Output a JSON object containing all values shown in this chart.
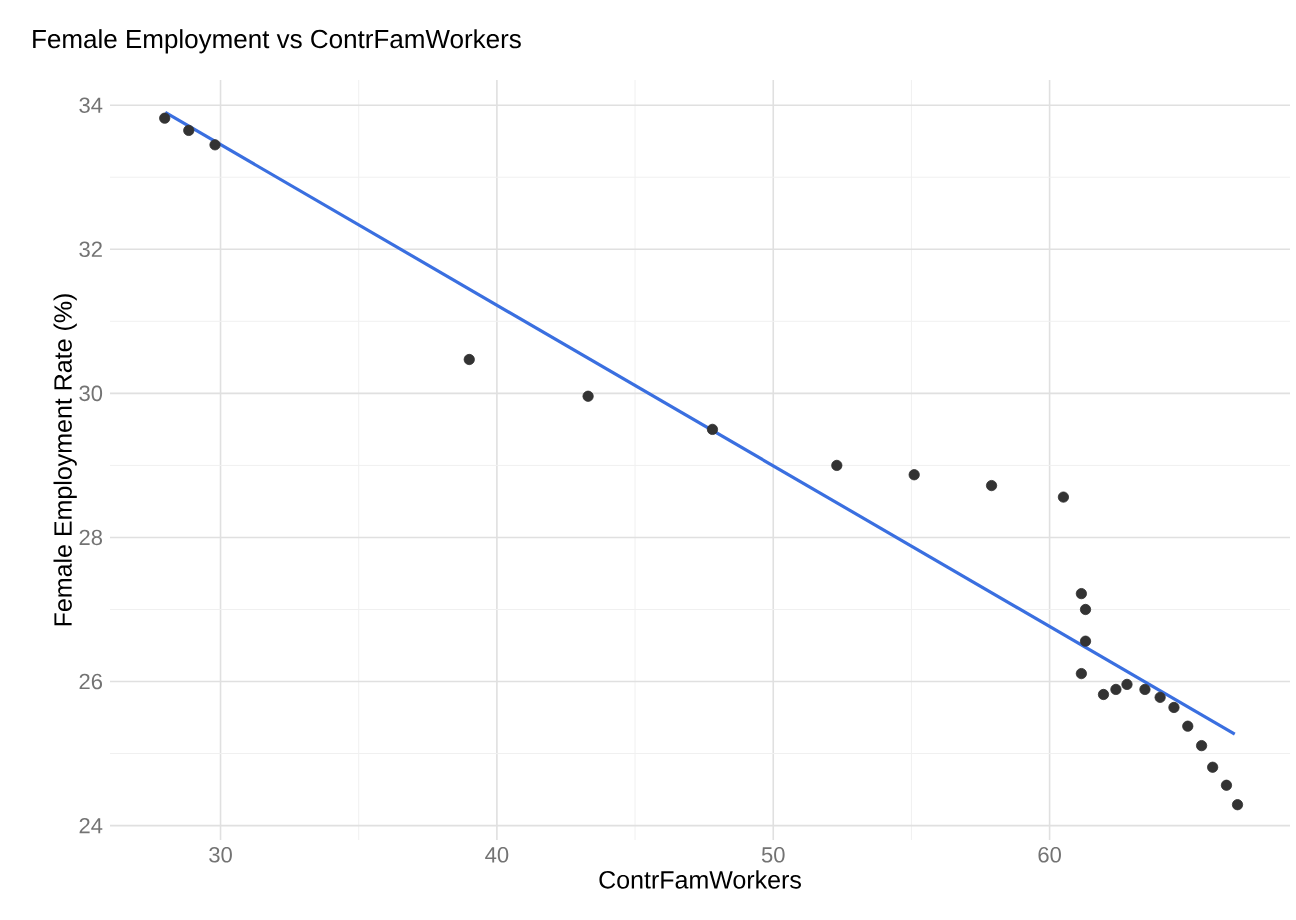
{
  "chart_data": {
    "type": "scatter",
    "title": "Female Employment vs ContrFamWorkers",
    "xlabel": "ContrFamWorkers",
    "ylabel": "Female Employment Rate (%)",
    "xlim": [
      26,
      68.7
    ],
    "ylim": [
      23.8,
      34.35
    ],
    "xticks": [
      30,
      40,
      50,
      60
    ],
    "yticks": [
      24,
      26,
      28,
      30,
      32,
      34
    ],
    "grid": true,
    "series": [
      {
        "marker": "circle",
        "color": "#333333",
        "x": [
          27.98,
          28.85,
          29.8,
          39.0,
          43.3,
          47.8,
          52.3,
          55.1,
          57.9,
          60.5,
          61.15,
          61.3,
          61.3,
          61.15,
          61.95,
          62.4,
          62.8,
          63.45,
          64.0,
          64.5,
          65.0,
          65.5,
          65.9,
          66.4,
          66.8
        ],
        "values": [
          33.82,
          33.65,
          33.45,
          30.47,
          29.96,
          29.5,
          29.0,
          28.87,
          28.72,
          28.56,
          27.22,
          27.0,
          26.56,
          26.11,
          25.82,
          25.89,
          25.96,
          25.89,
          25.78,
          25.64,
          25.38,
          25.11,
          24.81,
          24.56,
          24.29
        ]
      },
      {
        "type": "line",
        "color": "#3a6fe0",
        "x": [
          28.0,
          66.7
        ],
        "values": [
          33.9,
          25.27
        ]
      }
    ]
  }
}
